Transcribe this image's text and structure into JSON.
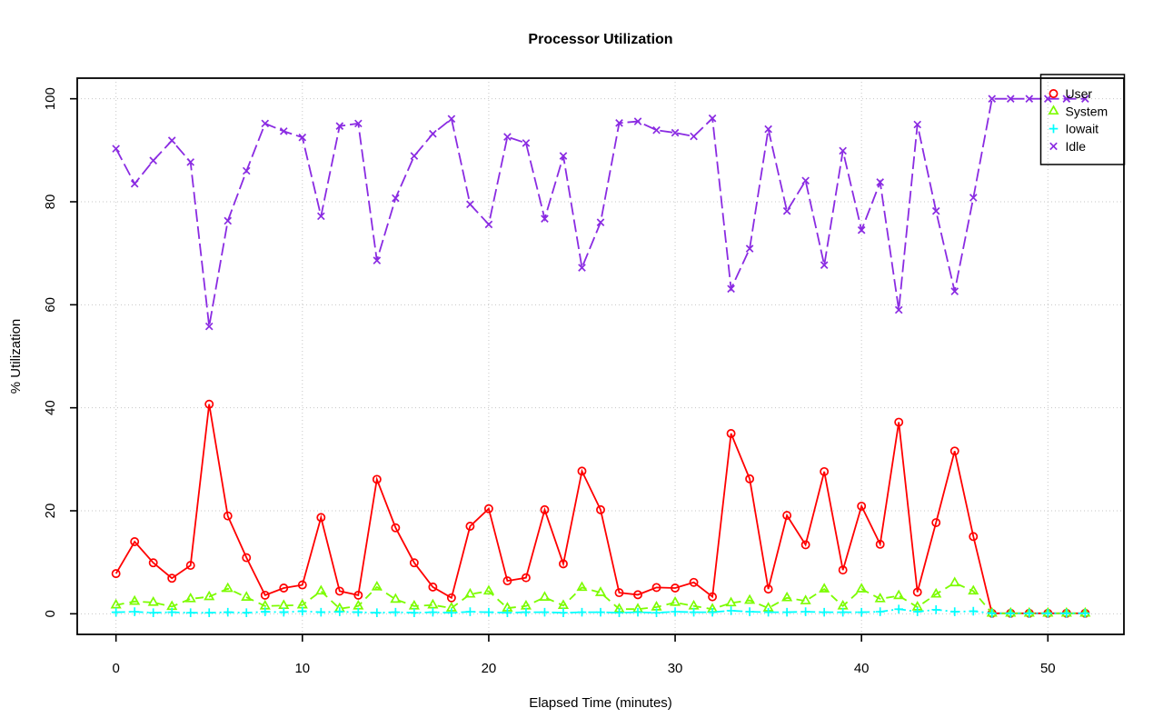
{
  "title": "Processor Utilization",
  "chart_data": {
    "type": "line",
    "title": "Processor Utilization",
    "xlabel": "Elapsed Time (minutes)",
    "ylabel": "% Utilization",
    "xlim": [
      0,
      52
    ],
    "ylim": [
      0,
      100
    ],
    "x_ticks": [
      0,
      10,
      20,
      30,
      40,
      50
    ],
    "y_ticks": [
      0,
      20,
      40,
      60,
      80,
      100
    ],
    "grid": true,
    "grid_style": "dotted",
    "grid_color": "#c6c6c6",
    "legend_position": "top-right",
    "legend_entries": [
      "User",
      "System",
      "Iowait",
      "Idle"
    ],
    "x": [
      0,
      1,
      2,
      3,
      4,
      5,
      6,
      7,
      8,
      9,
      10,
      11,
      12,
      13,
      14,
      15,
      16,
      17,
      18,
      19,
      20,
      21,
      22,
      23,
      24,
      25,
      26,
      27,
      28,
      29,
      30,
      31,
      32,
      33,
      34,
      35,
      36,
      37,
      38,
      39,
      40,
      41,
      42,
      43,
      44,
      45,
      46,
      47,
      48,
      49,
      50,
      51,
      52
    ],
    "series": [
      {
        "name": "User",
        "color": "#ff0000",
        "marker": "circle",
        "line": "solid",
        "values": [
          7.8,
          14.0,
          9.9,
          6.9,
          9.4,
          40.7,
          19.0,
          10.9,
          3.6,
          5.0,
          5.6,
          18.7,
          4.4,
          3.6,
          26.1,
          16.7,
          9.9,
          5.2,
          3.1,
          17.0,
          20.4,
          6.4,
          7.0,
          20.2,
          9.7,
          27.7,
          20.2,
          4.1,
          3.7,
          5.1,
          5.0,
          6.1,
          3.3,
          35.0,
          26.2,
          4.8,
          19.1,
          13.4,
          27.6,
          8.5,
          20.9,
          13.5,
          37.2,
          4.2,
          17.7,
          31.6,
          15.0,
          0.1,
          0.1,
          0.1,
          0.1,
          0.1,
          0.1
        ]
      },
      {
        "name": "System",
        "color": "#7cfc00",
        "marker": "triangle",
        "line": "dashed",
        "values": [
          1.7,
          2.4,
          2.2,
          1.4,
          2.9,
          3.3,
          4.9,
          3.2,
          1.5,
          1.6,
          1.7,
          4.4,
          1.0,
          1.5,
          5.2,
          2.8,
          1.5,
          1.7,
          1.1,
          3.8,
          4.4,
          1.1,
          1.5,
          3.2,
          1.6,
          5.1,
          4.1,
          0.9,
          0.9,
          1.3,
          2.2,
          1.5,
          0.9,
          2.1,
          2.6,
          1.1,
          3.1,
          2.5,
          4.8,
          1.5,
          4.8,
          2.9,
          3.5,
          1.3,
          3.8,
          6.0,
          4.4,
          0.1,
          0.1,
          0.1,
          0.1,
          0.1,
          0.1
        ]
      },
      {
        "name": "Iowait",
        "color": "#00ffff",
        "marker": "plus",
        "line": "dashdot",
        "values": [
          0.3,
          0.4,
          0.2,
          0.3,
          0.2,
          0.2,
          0.3,
          0.2,
          0.4,
          0.3,
          0.5,
          0.3,
          0.4,
          0.3,
          0.2,
          0.3,
          0.2,
          0.3,
          0.2,
          0.4,
          0.3,
          0.2,
          0.3,
          0.3,
          0.2,
          0.3,
          0.3,
          0.2,
          0.3,
          0.2,
          0.4,
          0.3,
          0.3,
          0.6,
          0.4,
          0.3,
          0.3,
          0.4,
          0.3,
          0.3,
          0.3,
          0.4,
          0.9,
          0.4,
          0.8,
          0.4,
          0.5,
          0.1,
          0.1,
          0.1,
          0.1,
          0.1,
          0.1
        ]
      },
      {
        "name": "Idle",
        "color": "#8a2be2",
        "marker": "x",
        "line": "longdash",
        "values": [
          90.3,
          83.5,
          88.0,
          91.9,
          87.7,
          55.8,
          76.3,
          86.0,
          95.2,
          93.7,
          92.5,
          77.2,
          94.7,
          95.2,
          68.6,
          80.7,
          88.9,
          93.2,
          96.1,
          79.5,
          75.6,
          92.6,
          91.4,
          76.7,
          88.9,
          67.2,
          76.0,
          95.3,
          95.6,
          93.9,
          93.4,
          92.7,
          96.2,
          63.1,
          70.9,
          94.1,
          78.2,
          84.1,
          67.7,
          89.9,
          74.5,
          83.8,
          59.0,
          95.0,
          78.2,
          62.6,
          80.8,
          100,
          100,
          100,
          100,
          100,
          100
        ]
      }
    ]
  }
}
